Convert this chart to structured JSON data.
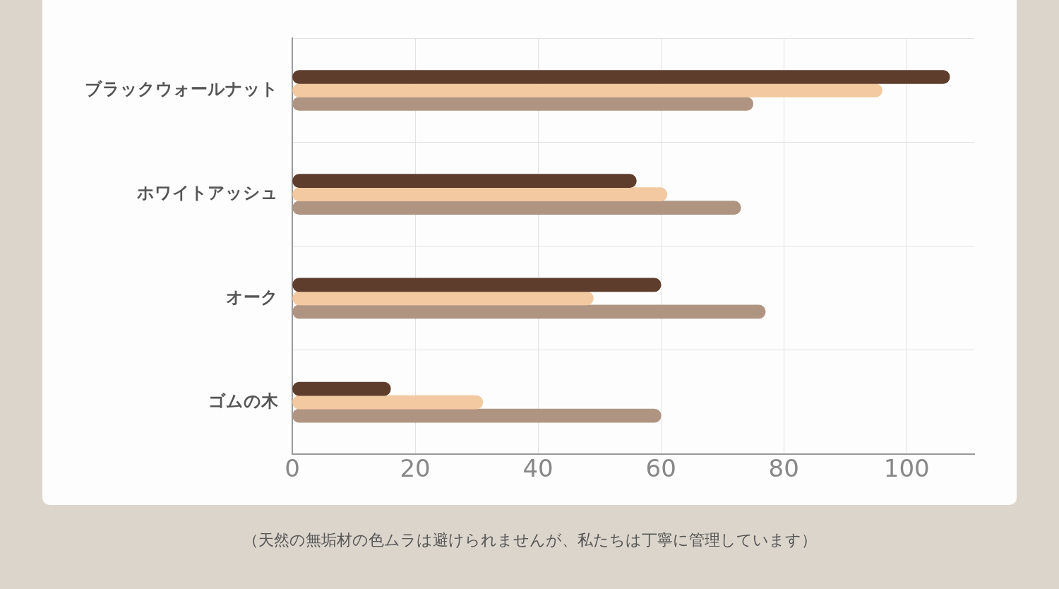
{
  "chart_data": {
    "type": "bar",
    "orientation": "horizontal",
    "categories": [
      "ブラックウォールナット",
      "ホワイトアッシュ",
      "オーク",
      "ゴムの木"
    ],
    "series": [
      {
        "color": "#5e3d2c",
        "values": [
          107,
          56,
          60,
          16
        ]
      },
      {
        "color": "#f2c9a0",
        "values": [
          96,
          61,
          49,
          31
        ]
      },
      {
        "color": "#b09482",
        "values": [
          75,
          73,
          77,
          60
        ]
      }
    ],
    "xlim": [
      0,
      111
    ],
    "xticks": [
      0,
      20,
      40,
      60,
      80,
      100
    ],
    "grid": true,
    "legend": false,
    "annotations": [
      "（天然の無垢材の色ムラは避けられませんが、私たちは丁寧に管理しています）"
    ]
  }
}
